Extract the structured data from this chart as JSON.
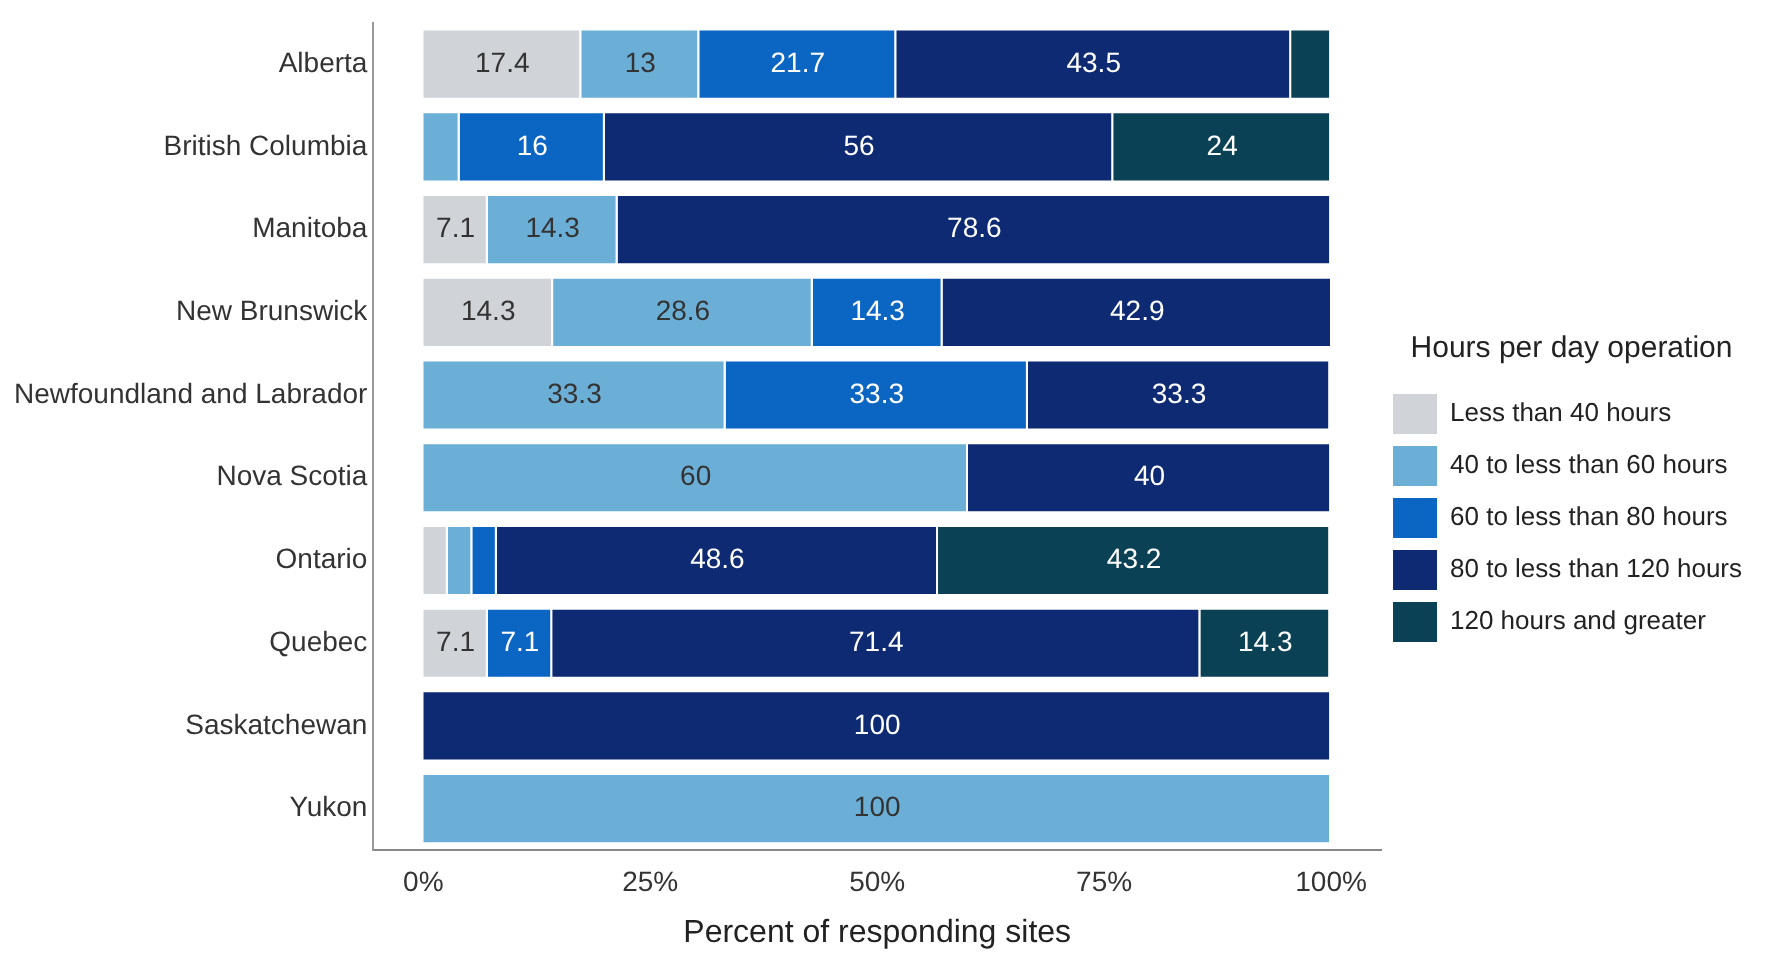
{
  "chart_data": {
    "type": "bar",
    "orientation": "horizontal",
    "stacked": true,
    "xlabel": "Percent of responding sites",
    "legend_title": "Hours per day operation",
    "legend": "right",
    "grid": false,
    "categories": [
      "Alberta",
      "British Columbia",
      "Manitoba",
      "New Brunswick",
      "Newfoundland and Labrador",
      "Nova Scotia",
      "Ontario",
      "Quebec",
      "Saskatchewan",
      "Yukon"
    ],
    "xlim": [
      -5.5,
      105.5
    ],
    "xticks": [
      {
        "value": 0,
        "label": "0%"
      },
      {
        "value": 25,
        "label": "25%"
      },
      {
        "value": 50,
        "label": "50%"
      },
      {
        "value": 75,
        "label": "75%"
      },
      {
        "value": 100,
        "label": "100%"
      }
    ],
    "series": [
      {
        "name": "Less than 40 hours",
        "color": "#d0d4d8",
        "values": [
          17.4,
          0,
          7.1,
          14.3,
          0,
          0,
          2.7,
          7.1,
          0,
          0
        ],
        "value_labels": [
          "17.4",
          null,
          "7.1",
          "14.3",
          null,
          null,
          null,
          "7.1",
          null,
          null
        ]
      },
      {
        "name": "40 to less than 60 hours",
        "color": "#6baed6",
        "values": [
          13,
          4,
          14.3,
          28.6,
          33.3,
          60,
          2.7,
          0,
          0,
          100
        ],
        "value_labels": [
          "13",
          null,
          "14.3",
          "28.6",
          "33.3",
          "60",
          null,
          null,
          null,
          "100"
        ]
      },
      {
        "name": "60 to less than 80 hours",
        "color": "#0a66c2",
        "values": [
          21.7,
          16,
          0,
          14.3,
          33.3,
          0,
          2.7,
          7.1,
          0,
          0
        ],
        "value_labels": [
          "21.7",
          "16",
          null,
          "14.3",
          "33.3",
          null,
          null,
          "7.1",
          null,
          null
        ]
      },
      {
        "name": "80 to less than 120 hours",
        "color": "#0d2a72",
        "values": [
          43.5,
          56,
          78.6,
          42.9,
          33.3,
          40,
          48.6,
          71.4,
          100,
          0
        ],
        "value_labels": [
          "43.5",
          "56",
          "78.6",
          "42.9",
          "33.3",
          "40",
          "48.6",
          "71.4",
          "100",
          null
        ]
      },
      {
        "name": "120 hours and greater",
        "color": "#0b4155",
        "values": [
          4.4,
          24,
          0,
          0,
          0,
          0,
          43.2,
          14.3,
          0,
          0
        ],
        "value_labels": [
          null,
          "24",
          null,
          null,
          null,
          null,
          "43.2",
          "14.3",
          null,
          null
        ]
      }
    ]
  }
}
